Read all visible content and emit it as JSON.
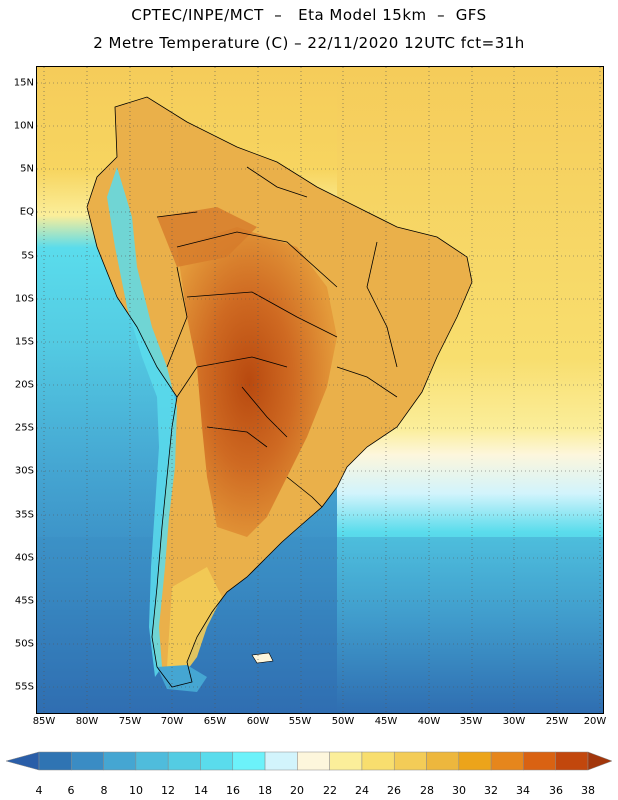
{
  "header": {
    "line1": "CPTEC/INPE/MCT  –   Eta Model 15km  –  GFS",
    "line2": "2 Metre Temperature (C) – 22/11/2020 12UTC fct=31h"
  },
  "axes": {
    "lat_labels": [
      "15N",
      "10N",
      "5N",
      "EQ",
      "5S",
      "10S",
      "15S",
      "20S",
      "25S",
      "30S",
      "35S",
      "40S",
      "45S",
      "50S",
      "55S"
    ],
    "lon_labels": [
      "85W",
      "80W",
      "75W",
      "70W",
      "65W",
      "60W",
      "55W",
      "50W",
      "45W",
      "40W",
      "35W",
      "30W",
      "25W",
      "20W"
    ]
  },
  "colorbar": {
    "ticks": [
      "4",
      "6",
      "8",
      "10",
      "12",
      "14",
      "16",
      "18",
      "20",
      "22",
      "24",
      "26",
      "28",
      "30",
      "32",
      "34",
      "36",
      "38"
    ],
    "colors": [
      "#2a5ea8",
      "#2f74b3",
      "#3a8cc4",
      "#45a6d2",
      "#4fbcdc",
      "#54cce3",
      "#5adcec",
      "#6cf2fa",
      "#d2f4fc",
      "#fdf6dc",
      "#fbee9a",
      "#f8de6e",
      "#f3cc57",
      "#edb73d",
      "#eca41a",
      "#e6861c",
      "#d96212",
      "#c2470d",
      "#a2360b"
    ]
  },
  "colors": {
    "ocean_cold": "#2a5ea8",
    "ocean_mid": "#4fbcdc",
    "ocean_warm": "#f5cc5a",
    "land_hot": "#c65a1e",
    "land_warm": "#e49a3a",
    "andes_cold": "#5adcec"
  }
}
